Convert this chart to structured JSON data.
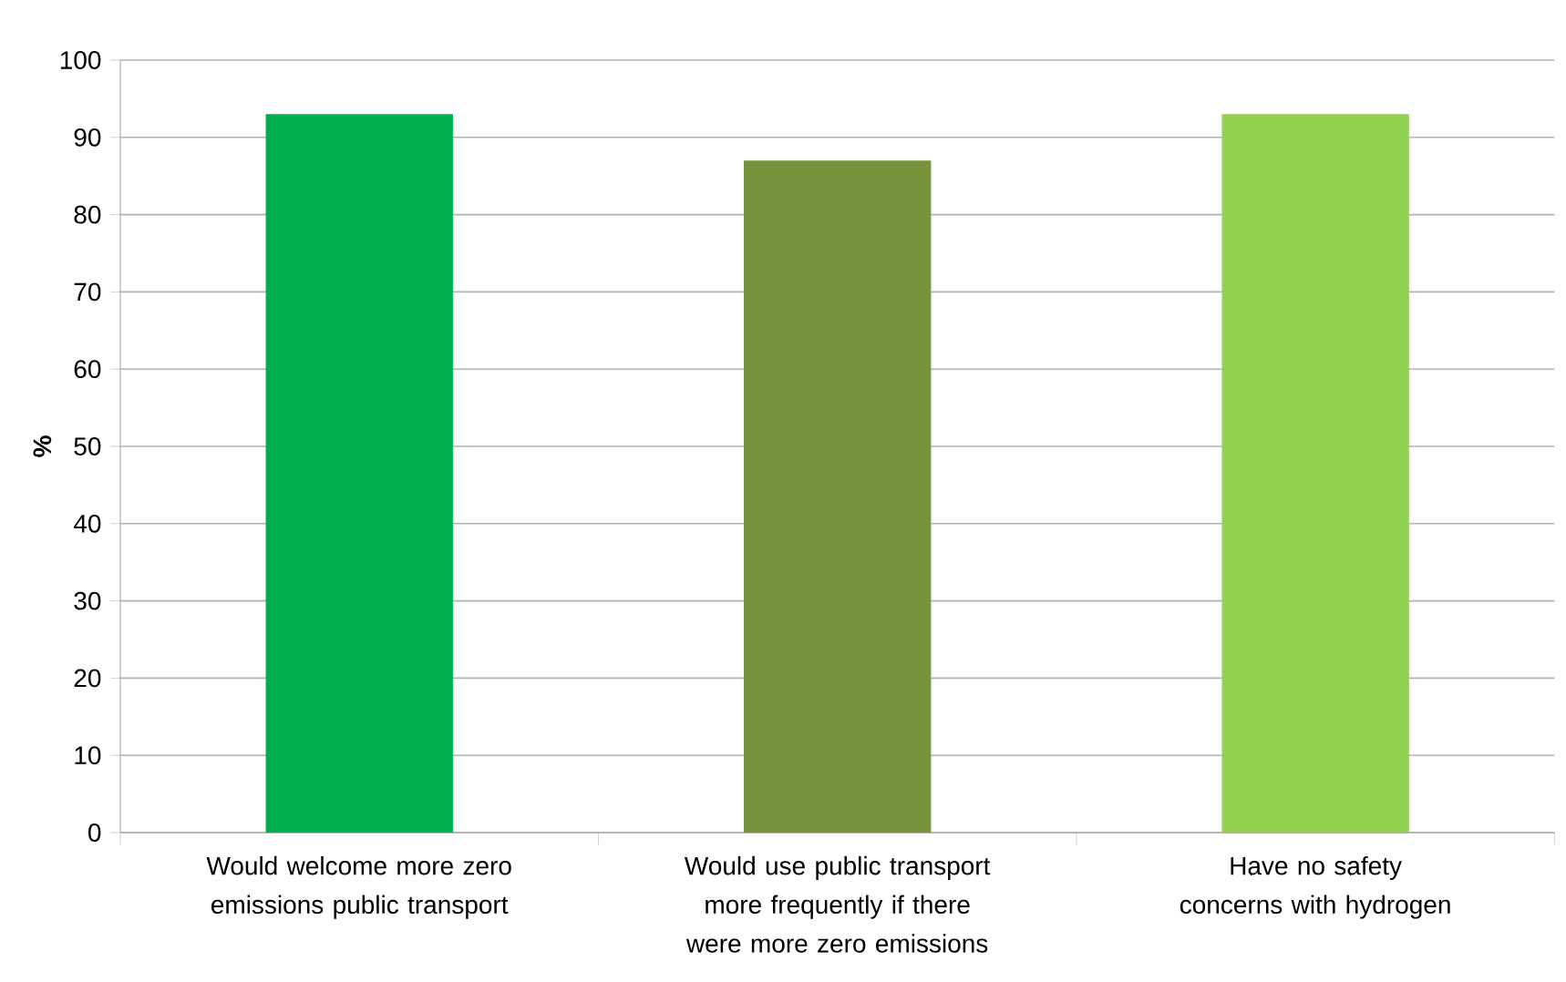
{
  "chart_data": {
    "type": "bar",
    "ylabel": "%",
    "categories": [
      "Would welcome more zero emissions public transport",
      "Would use public transport more frequently if there were more zero emissions",
      "Have no safety concerns with hydrogen"
    ],
    "values": [
      93,
      87,
      93
    ],
    "colors": [
      "#00b050",
      "#77933c",
      "#92d050"
    ],
    "ylim": [
      0,
      100
    ],
    "yticks": [
      0,
      10,
      20,
      30,
      40,
      50,
      60,
      70,
      80,
      90,
      100
    ],
    "grid": "y"
  }
}
